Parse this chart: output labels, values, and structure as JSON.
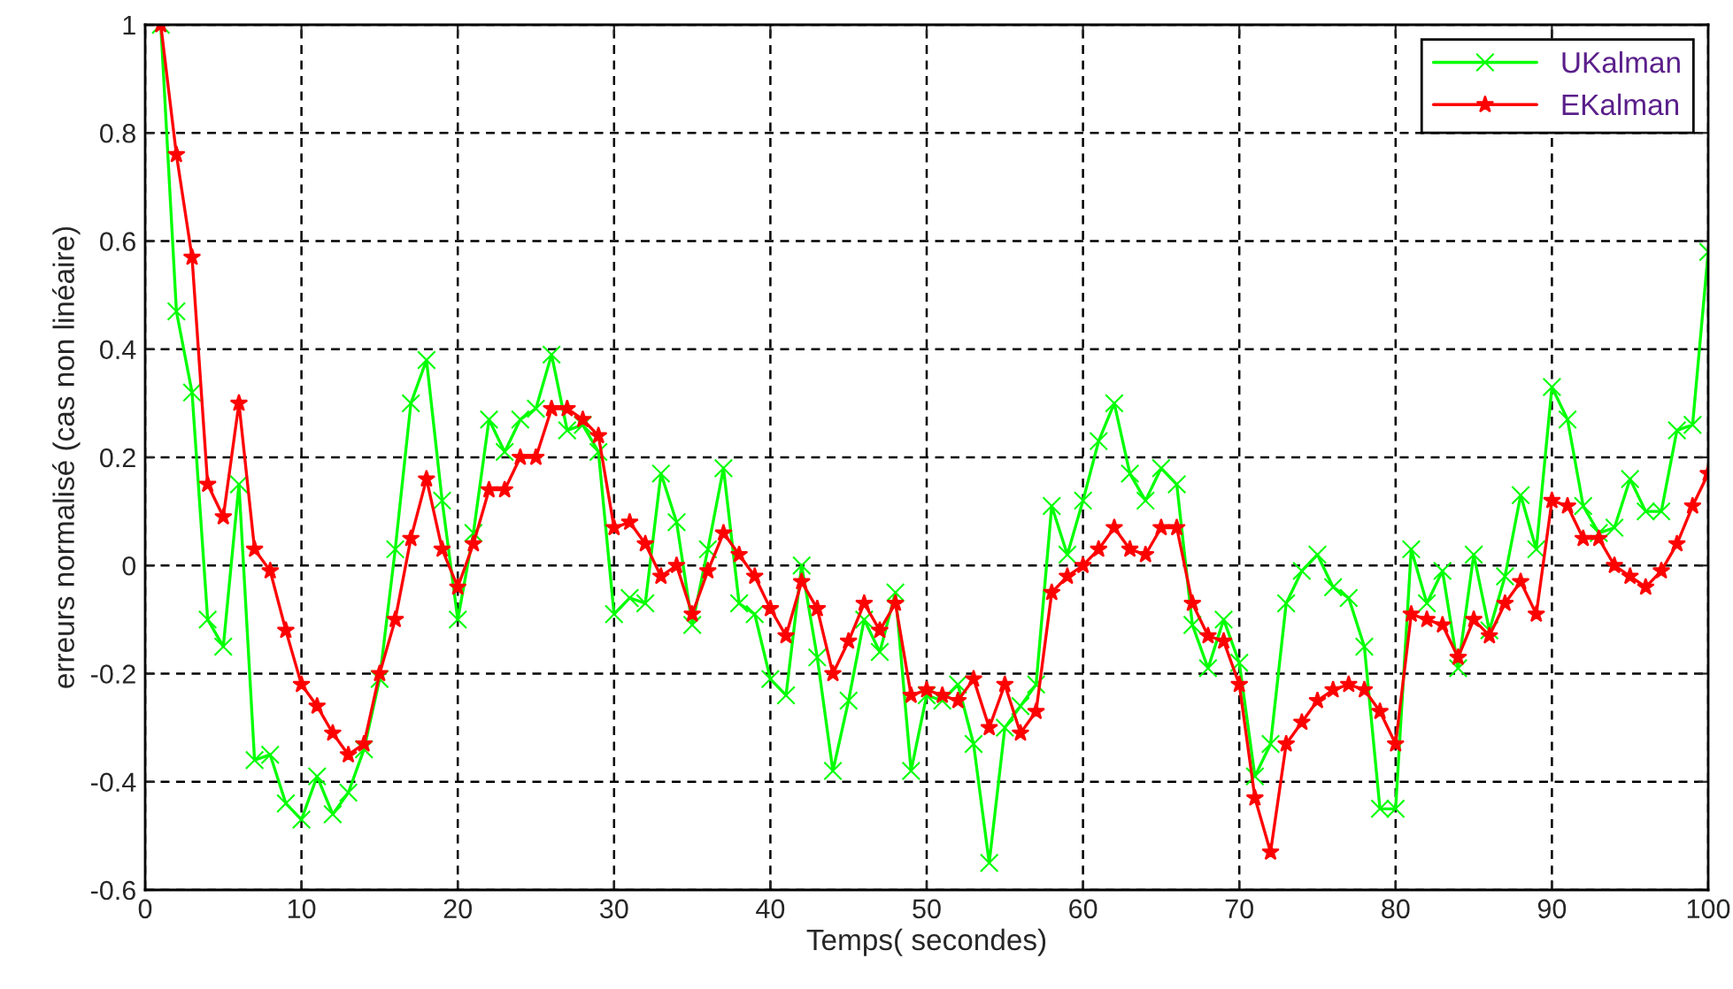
{
  "chart_data": {
    "type": "line",
    "xlabel": "Temps( secondes)",
    "ylabel": "erreurs normalisé (cas non linéaire)",
    "x": [
      1,
      2,
      3,
      4,
      5,
      6,
      7,
      8,
      9,
      10,
      11,
      12,
      13,
      14,
      15,
      16,
      17,
      18,
      19,
      20,
      21,
      22,
      23,
      24,
      25,
      26,
      27,
      28,
      29,
      30,
      31,
      32,
      33,
      34,
      35,
      36,
      37,
      38,
      39,
      40,
      41,
      42,
      43,
      44,
      45,
      46,
      47,
      48,
      49,
      50,
      51,
      52,
      53,
      54,
      55,
      56,
      57,
      58,
      59,
      60,
      61,
      62,
      63,
      64,
      65,
      66,
      67,
      68,
      69,
      70,
      71,
      72,
      73,
      74,
      75,
      76,
      77,
      78,
      79,
      80,
      81,
      82,
      83,
      84,
      85,
      86,
      87,
      88,
      89,
      90,
      91,
      92,
      93,
      94,
      95,
      96,
      97,
      98,
      99,
      100
    ],
    "series": [
      {
        "name": "UKalman",
        "color": "#00ff00",
        "marker": "cross",
        "values": [
          1.0,
          0.47,
          0.32,
          -0.1,
          -0.15,
          0.15,
          -0.36,
          -0.35,
          -0.44,
          -0.47,
          -0.39,
          -0.46,
          -0.42,
          -0.34,
          -0.21,
          0.03,
          0.3,
          0.38,
          0.12,
          -0.1,
          0.06,
          0.27,
          0.21,
          0.27,
          0.29,
          0.39,
          0.25,
          0.26,
          0.21,
          -0.09,
          -0.06,
          -0.07,
          0.17,
          0.08,
          -0.11,
          0.03,
          0.18,
          -0.07,
          -0.09,
          -0.21,
          -0.24,
          0.0,
          -0.17,
          -0.38,
          -0.25,
          -0.1,
          -0.16,
          -0.05,
          -0.38,
          -0.24,
          -0.25,
          -0.22,
          -0.33,
          -0.55,
          -0.3,
          -0.26,
          -0.22,
          0.11,
          0.02,
          0.12,
          0.23,
          0.3,
          0.17,
          0.12,
          0.18,
          0.15,
          -0.11,
          -0.19,
          -0.1,
          -0.18,
          -0.39,
          -0.33,
          -0.07,
          -0.01,
          0.02,
          -0.04,
          -0.06,
          -0.15,
          -0.45,
          -0.45,
          0.03,
          -0.07,
          -0.01,
          -0.19,
          0.02,
          -0.12,
          -0.02,
          0.13,
          0.03,
          0.33,
          0.27,
          0.11,
          0.06,
          0.07,
          0.16,
          0.1,
          0.1,
          0.25,
          0.26,
          0.58
        ]
      },
      {
        "name": "EKalman",
        "color": "#ff0000",
        "marker": "star",
        "values": [
          1.0,
          0.76,
          0.57,
          0.15,
          0.09,
          0.3,
          0.03,
          -0.01,
          -0.12,
          -0.22,
          -0.26,
          -0.31,
          -0.35,
          -0.33,
          -0.2,
          -0.1,
          0.05,
          0.16,
          0.03,
          -0.04,
          0.04,
          0.14,
          0.14,
          0.2,
          0.2,
          0.29,
          0.29,
          0.27,
          0.24,
          0.07,
          0.08,
          0.04,
          -0.02,
          0.0,
          -0.09,
          -0.01,
          0.06,
          0.02,
          -0.02,
          -0.08,
          -0.13,
          -0.03,
          -0.08,
          -0.2,
          -0.14,
          -0.07,
          -0.12,
          -0.07,
          -0.24,
          -0.23,
          -0.24,
          -0.25,
          -0.21,
          -0.3,
          -0.22,
          -0.31,
          -0.27,
          -0.05,
          -0.02,
          0.0,
          0.03,
          0.07,
          0.03,
          0.02,
          0.07,
          0.07,
          -0.07,
          -0.13,
          -0.14,
          -0.22,
          -0.43,
          -0.53,
          -0.33,
          -0.29,
          -0.25,
          -0.23,
          -0.22,
          -0.23,
          -0.27,
          -0.33,
          -0.09,
          -0.1,
          -0.11,
          -0.17,
          -0.1,
          -0.13,
          -0.07,
          -0.03,
          -0.09,
          0.12,
          0.11,
          0.05,
          0.05,
          0.0,
          -0.02,
          -0.04,
          -0.01,
          0.04,
          0.11,
          0.17
        ]
      }
    ],
    "xlim": [
      0,
      100
    ],
    "xticks": [
      0,
      10,
      20,
      30,
      40,
      50,
      60,
      70,
      80,
      90,
      100
    ],
    "ylim": [
      -0.6,
      1
    ],
    "yticks": [
      -0.6,
      -0.4,
      -0.2,
      0,
      0.2,
      0.4,
      0.6,
      0.8,
      1
    ],
    "grid": true,
    "legend": "top right",
    "line_style": "solid"
  }
}
